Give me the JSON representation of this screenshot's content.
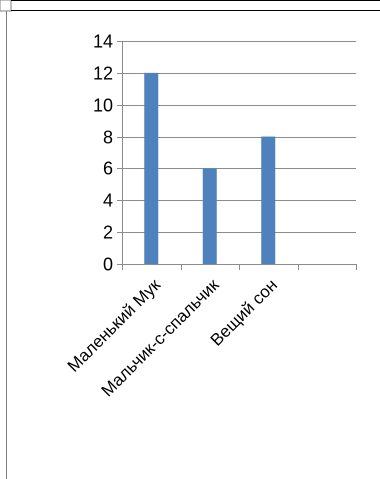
{
  "chart_data": {
    "type": "bar",
    "categories": [
      "Маленький Мук",
      "Мальчик-с-спальчик",
      "Вещий сон",
      ""
    ],
    "values": [
      12,
      6,
      8,
      null
    ],
    "ylim": [
      0,
      14
    ],
    "yticks": [
      0,
      2,
      4,
      6,
      8,
      10,
      12,
      14
    ],
    "grid": true,
    "legend": "none",
    "bar_color": "#4f81bd",
    "grid_color": "#8c8c8c"
  }
}
